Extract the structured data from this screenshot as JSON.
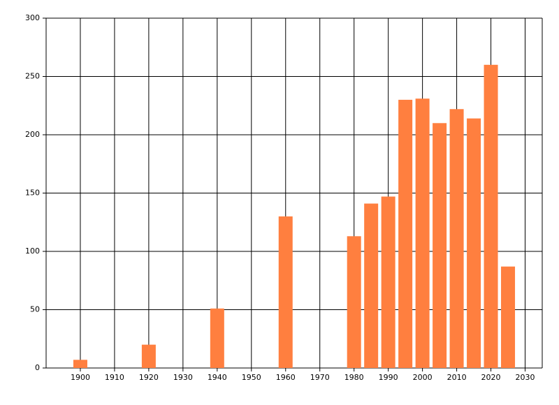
{
  "chart_data": {
    "type": "bar",
    "x": [
      1900,
      1920,
      1940,
      1960,
      1980,
      1985,
      1990,
      1995,
      2000,
      2005,
      2010,
      2015,
      2020,
      2025
    ],
    "values": [
      7,
      20,
      51,
      130,
      113,
      141,
      147,
      230,
      231,
      210,
      222,
      214,
      260,
      87
    ],
    "color": "#ff7f3f",
    "xlim": [
      1890,
      2035
    ],
    "xticks": [
      1900,
      1910,
      1920,
      1930,
      1940,
      1950,
      1960,
      1970,
      1980,
      1990,
      2000,
      2010,
      2020,
      2030
    ],
    "ylim": [
      0,
      300
    ],
    "yticks": [
      0,
      50,
      100,
      150,
      200,
      250,
      300
    ],
    "grid": true
  }
}
